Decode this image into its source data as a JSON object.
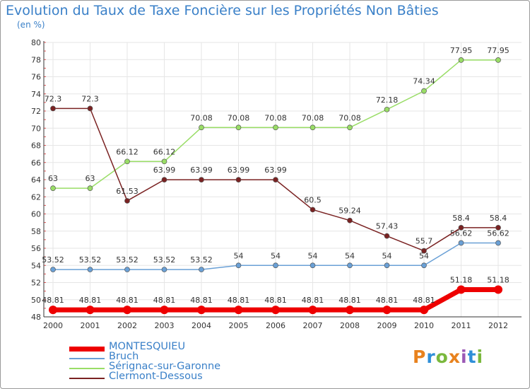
{
  "page": {
    "title": "Evolution du Taux de Taxe Foncière sur les Propriétés Non Bâties",
    "unit": "(en %)",
    "logo": {
      "text": "Proxiti",
      "colors": [
        "#e8821e",
        "#2f8fd8",
        "#7ab83d",
        "#e8821e",
        "#9b59b6",
        "#2f8fd8",
        "#7ab83d"
      ]
    }
  },
  "chart_data": {
    "type": "line",
    "x": [
      "2000",
      "2001",
      "2002",
      "2003",
      "2004",
      "2005",
      "2006",
      "2007",
      "2008",
      "2009",
      "2010",
      "2011",
      "2012"
    ],
    "ylim": [
      48,
      80
    ],
    "yticks": [
      48,
      50,
      52,
      54,
      56,
      58,
      60,
      62,
      64,
      66,
      68,
      70,
      72,
      74,
      76,
      78,
      80
    ],
    "grid": true,
    "legend_position": "bottom-left",
    "series": [
      {
        "name": "MONTESQUIEU",
        "color": "#ee0000",
        "highlight": true,
        "values": [
          48.81,
          48.81,
          48.81,
          48.81,
          48.81,
          48.81,
          48.81,
          48.81,
          48.81,
          48.81,
          48.81,
          51.18,
          51.18
        ],
        "labels": [
          "48.81",
          "48.81",
          "48.81",
          "48.81",
          "48.81",
          "48.81",
          "48.81",
          "48.81",
          "48.81",
          "48.81",
          "48.81",
          "51.18",
          "51.18"
        ]
      },
      {
        "name": "Bruch",
        "color": "#6aa0d6",
        "highlight": false,
        "values": [
          53.52,
          53.52,
          53.52,
          53.52,
          53.52,
          54,
          54,
          54,
          54,
          54,
          54,
          56.62,
          56.62
        ],
        "labels": [
          "53.52",
          "53.52",
          "53.52",
          "53.52",
          "53.52",
          "54",
          "54",
          "54",
          "54",
          "54",
          "54",
          "56.62",
          "56.62"
        ]
      },
      {
        "name": "Sérignac-sur-Garonne",
        "color": "#99dd66",
        "highlight": false,
        "values": [
          63,
          63,
          66.12,
          66.12,
          70.08,
          70.08,
          70.08,
          70.08,
          70.08,
          72.18,
          74.34,
          77.95,
          77.95
        ],
        "labels": [
          "63",
          "63",
          "66.12",
          "66.12",
          "70.08",
          "70.08",
          "70.08",
          "70.08",
          "70.08",
          "72.18",
          "74.34",
          "77.95",
          "77.95"
        ]
      },
      {
        "name": "Clermont-Dessous",
        "color": "#7a2222",
        "highlight": false,
        "values": [
          72.3,
          72.3,
          61.53,
          63.99,
          63.99,
          63.99,
          63.99,
          60.5,
          59.24,
          57.43,
          55.7,
          58.4,
          58.4
        ],
        "labels": [
          "72.3",
          "72.3",
          "61.53",
          "63.99",
          "63.99",
          "63.99",
          "63.99",
          "60.5",
          "59.24",
          "57.43",
          "55.7",
          "58.4",
          "58.4"
        ]
      }
    ]
  }
}
